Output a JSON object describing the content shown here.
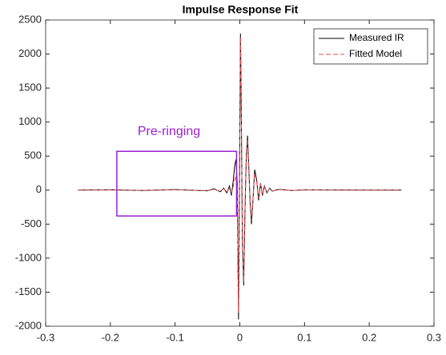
{
  "chart_data": {
    "type": "line",
    "title": "Impulse Response Fit",
    "x": [
      -0.25,
      -0.2,
      -0.15,
      -0.1,
      -0.05,
      -0.04,
      -0.03,
      -0.025,
      -0.02,
      -0.016,
      -0.013,
      -0.01,
      -0.008,
      -0.006,
      -0.004,
      -0.002,
      0,
      0.001,
      0.002,
      0.004,
      0.006,
      0.008,
      0.01,
      0.012,
      0.014,
      0.016,
      0.018,
      0.02,
      0.023,
      0.026,
      0.029,
      0.032,
      0.035,
      0.038,
      0.042,
      0.046,
      0.05,
      0.06,
      0.08,
      0.1,
      0.15,
      0.2,
      0.25
    ],
    "series": [
      {
        "name": "Measured IR",
        "color": "#000000",
        "dash": false,
        "values": [
          0,
          5,
          -5,
          8,
          -10,
          20,
          -25,
          30,
          -40,
          60,
          -80,
          150,
          350,
          450,
          100,
          -1900,
          800,
          2300,
          1500,
          -800,
          -1400,
          -300,
          500,
          800,
          300,
          -200,
          -500,
          -200,
          300,
          150,
          -150,
          100,
          -80,
          60,
          -40,
          30,
          -15,
          10,
          -5,
          3,
          2,
          1,
          0
        ]
      },
      {
        "name": "Fitted Model",
        "color": "#e8484d",
        "dash": true,
        "values": [
          0,
          2,
          -3,
          5,
          -8,
          10,
          -15,
          20,
          -25,
          30,
          -40,
          60,
          150,
          200,
          50,
          -1800,
          900,
          2250,
          1400,
          -750,
          -1350,
          -250,
          450,
          750,
          280,
          -180,
          -450,
          -180,
          250,
          130,
          -120,
          90,
          -70,
          50,
          -35,
          25,
          -12,
          8,
          -4,
          2,
          1,
          0,
          0
        ]
      }
    ],
    "xlim": [
      -0.3,
      0.3
    ],
    "xticks": [
      -0.3,
      -0.2,
      -0.1,
      0,
      0.1,
      0.2,
      0.3
    ],
    "ylim": [
      -2000,
      2500
    ],
    "yticks": [
      -2000,
      -1500,
      -1000,
      -500,
      0,
      500,
      1000,
      1500,
      2000,
      2500
    ],
    "grid": false,
    "legend": "northeast",
    "annotation": {
      "text": "Pre-ringing",
      "color": "#9b1fd1"
    }
  }
}
